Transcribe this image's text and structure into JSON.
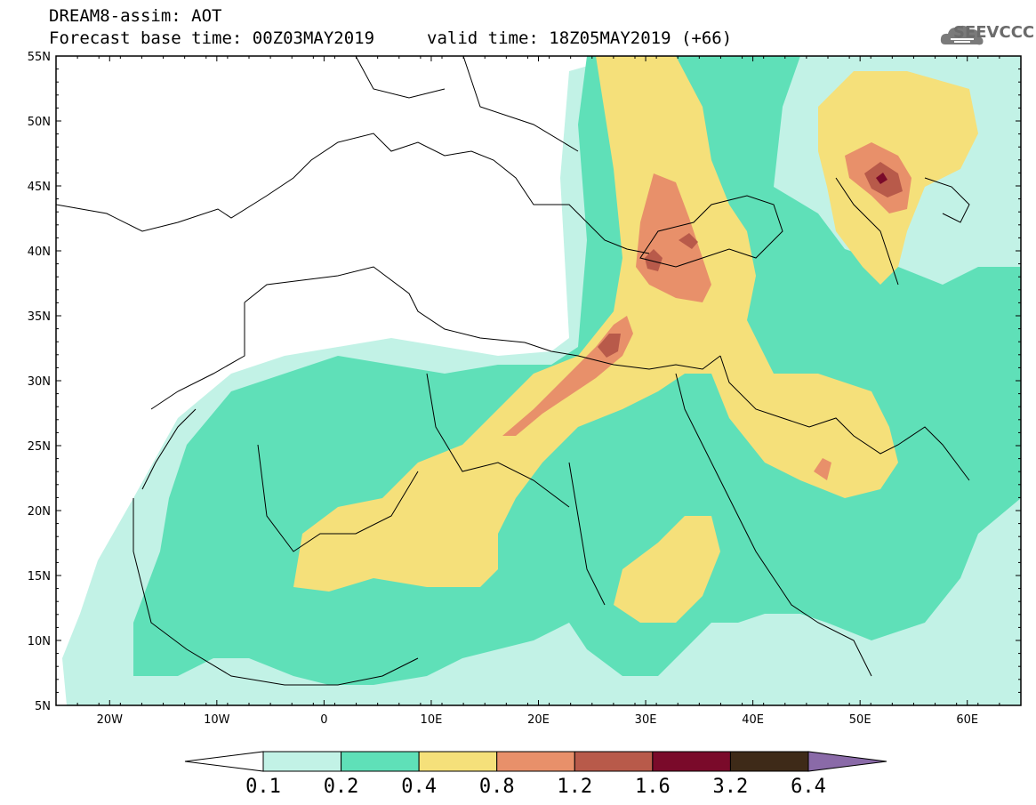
{
  "header": {
    "title": "DREAM8-assim: AOT",
    "base_time": "Forecast base time: 00Z03MAY2019",
    "valid_time": "valid time: 18Z05MAY2019 (+66)"
  },
  "logo": {
    "text": "SEEVCCC",
    "icon": "cloud-icon"
  },
  "map": {
    "lon_range": [
      -25,
      65
    ],
    "lat_range": [
      5,
      55
    ],
    "lat_ticks": [
      "55N",
      "50N",
      "45N",
      "40N",
      "35N",
      "30N",
      "25N",
      "20N",
      "15N",
      "10N",
      "5N"
    ],
    "lon_ticks": [
      "20W",
      "10W",
      "0",
      "10E",
      "20E",
      "30E",
      "40E",
      "50E",
      "60E"
    ]
  },
  "colorbar": {
    "levels": [
      "0.1",
      "0.2",
      "0.4",
      "0.8",
      "1.2",
      "1.6",
      "3.2",
      "6.4"
    ],
    "colors": [
      "#c2f2e6",
      "#5fe0b8",
      "#f5e07a",
      "#e8906a",
      "#b85a4a",
      "#7a0a2a",
      "#3e2a18",
      "#8a6aa8"
    ],
    "under_color": "#ffffff"
  }
}
